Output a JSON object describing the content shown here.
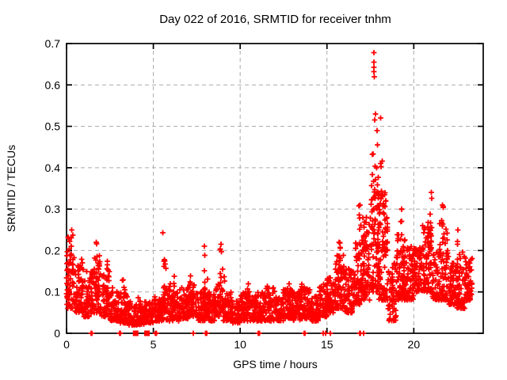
{
  "window": {
    "background": "#ffffff",
    "foreground": "#000000"
  },
  "chart_data": {
    "type": "scatter",
    "title": "Day 022 of 2016, SRMTID for receiver tnhm",
    "xlabel": "GPS time / hours",
    "ylabel": "SRMTID / TECUs",
    "xlim": [
      0,
      24
    ],
    "ylim": [
      0,
      0.7
    ],
    "xticks": [
      0,
      5,
      10,
      15,
      20
    ],
    "yticks": [
      0,
      0.1,
      0.2,
      0.3,
      0.4,
      0.5,
      0.6,
      0.7
    ],
    "grid": true,
    "grid_style": "dashed",
    "grid_color": "#aaaaaa",
    "legend": "none",
    "marker": {
      "glyph": "plus",
      "color": "#ff0000",
      "size": 7
    },
    "series_name": "SRMTID",
    "seed": 20160122,
    "notable_points": [
      {
        "x": 17.7,
        "y": 0.678,
        "note": "daily maximum"
      },
      {
        "x": 17.7,
        "y": 0.655
      },
      {
        "x": 17.7,
        "y": 0.643
      },
      {
        "x": 17.71,
        "y": 0.632
      },
      {
        "x": 17.72,
        "y": 0.62
      },
      {
        "x": 17.8,
        "y": 0.53
      },
      {
        "x": 17.75,
        "y": 0.515
      },
      {
        "x": 18.1,
        "y": 0.52
      },
      {
        "x": 17.88,
        "y": 0.49
      },
      {
        "x": 17.9,
        "y": 0.455
      },
      {
        "x": 21.0,
        "y": 0.34
      },
      {
        "x": 16.9,
        "y": 0.31
      },
      {
        "x": 21.65,
        "y": 0.31
      },
      {
        "x": 19.3,
        "y": 0.3
      },
      {
        "x": 0.3,
        "y": 0.25
      },
      {
        "x": 22.55,
        "y": 0.25
      },
      {
        "x": 5.54,
        "y": 0.243
      },
      {
        "x": 1.7,
        "y": 0.22
      },
      {
        "x": 15.7,
        "y": 0.22
      },
      {
        "x": 8.9,
        "y": 0.215
      },
      {
        "x": 7.95,
        "y": 0.21
      }
    ],
    "density_bins": [
      [
        0.0,
        0.5,
        0.06,
        0.22,
        55
      ],
      [
        0.5,
        1.0,
        0.05,
        0.18,
        60
      ],
      [
        1.0,
        1.5,
        0.04,
        0.15,
        60
      ],
      [
        1.5,
        2.0,
        0.05,
        0.19,
        60
      ],
      [
        2.0,
        2.5,
        0.04,
        0.16,
        55
      ],
      [
        2.5,
        3.0,
        0.03,
        0.11,
        55
      ],
      [
        3.0,
        3.5,
        0.025,
        0.1,
        55
      ],
      [
        3.5,
        4.0,
        0.02,
        0.08,
        55
      ],
      [
        4.0,
        4.5,
        0.02,
        0.07,
        55
      ],
      [
        4.5,
        5.0,
        0.025,
        0.08,
        55
      ],
      [
        5.0,
        5.5,
        0.03,
        0.09,
        55
      ],
      [
        5.5,
        6.0,
        0.03,
        0.12,
        55
      ],
      [
        6.0,
        6.5,
        0.03,
        0.1,
        55
      ],
      [
        6.5,
        7.0,
        0.035,
        0.11,
        55
      ],
      [
        7.0,
        7.5,
        0.04,
        0.12,
        60
      ],
      [
        7.5,
        8.0,
        0.03,
        0.11,
        55
      ],
      [
        8.0,
        8.5,
        0.03,
        0.1,
        55
      ],
      [
        8.5,
        9.0,
        0.04,
        0.12,
        55
      ],
      [
        9.0,
        9.5,
        0.03,
        0.1,
        50
      ],
      [
        9.5,
        10.0,
        0.025,
        0.08,
        55
      ],
      [
        10.0,
        10.5,
        0.03,
        0.1,
        60
      ],
      [
        10.5,
        11.0,
        0.03,
        0.09,
        55
      ],
      [
        11.0,
        11.5,
        0.03,
        0.1,
        60
      ],
      [
        11.5,
        12.0,
        0.03,
        0.11,
        55
      ],
      [
        12.0,
        12.5,
        0.03,
        0.09,
        55
      ],
      [
        12.5,
        13.0,
        0.035,
        0.11,
        60
      ],
      [
        13.0,
        13.5,
        0.03,
        0.1,
        55
      ],
      [
        13.5,
        14.0,
        0.035,
        0.11,
        60
      ],
      [
        14.0,
        14.5,
        0.03,
        0.09,
        55
      ],
      [
        14.5,
        15.0,
        0.04,
        0.12,
        55
      ],
      [
        15.0,
        15.5,
        0.05,
        0.14,
        60
      ],
      [
        15.5,
        16.0,
        0.06,
        0.19,
        65
      ],
      [
        16.0,
        16.5,
        0.05,
        0.16,
        60
      ],
      [
        16.5,
        17.0,
        0.07,
        0.23,
        65
      ],
      [
        17.0,
        17.5,
        0.08,
        0.28,
        70
      ],
      [
        17.5,
        18.0,
        0.1,
        0.36,
        75
      ],
      [
        18.0,
        18.5,
        0.08,
        0.33,
        70
      ],
      [
        18.5,
        19.0,
        0.03,
        0.17,
        60
      ],
      [
        19.0,
        19.5,
        0.08,
        0.24,
        65
      ],
      [
        19.5,
        20.0,
        0.08,
        0.21,
        65
      ],
      [
        20.0,
        20.5,
        0.1,
        0.21,
        65
      ],
      [
        20.5,
        21.0,
        0.1,
        0.26,
        65
      ],
      [
        21.0,
        21.5,
        0.08,
        0.21,
        60
      ],
      [
        21.5,
        22.0,
        0.08,
        0.27,
        60
      ],
      [
        22.0,
        22.5,
        0.07,
        0.17,
        65
      ],
      [
        22.5,
        23.0,
        0.06,
        0.2,
        60
      ],
      [
        23.0,
        23.35,
        0.08,
        0.19,
        45
      ]
    ],
    "spike_columns": [
      [
        0.1,
        0.08,
        0.25,
        10,
        0.08
      ],
      [
        0.35,
        0.1,
        0.24,
        8,
        0.08
      ],
      [
        1.7,
        0.08,
        0.22,
        9,
        0.08
      ],
      [
        2.3,
        0.06,
        0.18,
        7,
        0.08
      ],
      [
        3.3,
        0.04,
        0.13,
        6,
        0.08
      ],
      [
        4.2,
        0.03,
        0.09,
        5,
        0.08
      ],
      [
        5.66,
        0.05,
        0.185,
        9,
        0.06
      ],
      [
        6.2,
        0.05,
        0.14,
        7,
        0.06
      ],
      [
        7.2,
        0.06,
        0.145,
        8,
        0.08
      ],
      [
        7.95,
        0.05,
        0.21,
        9,
        0.06
      ],
      [
        8.15,
        0.05,
        0.145,
        6,
        0.06
      ],
      [
        8.9,
        0.05,
        0.215,
        10,
        0.06
      ],
      [
        9.05,
        0.05,
        0.16,
        6,
        0.06
      ],
      [
        10.45,
        0.04,
        0.12,
        6,
        0.08
      ],
      [
        11.5,
        0.04,
        0.115,
        6,
        0.08
      ],
      [
        12.8,
        0.04,
        0.12,
        6,
        0.08
      ],
      [
        13.5,
        0.04,
        0.12,
        6,
        0.08
      ],
      [
        14.9,
        0.05,
        0.13,
        6,
        0.08
      ],
      [
        15.7,
        0.08,
        0.22,
        10,
        0.07
      ],
      [
        16.9,
        0.1,
        0.31,
        12,
        0.07
      ],
      [
        17.15,
        0.1,
        0.27,
        9,
        0.07
      ],
      [
        17.7,
        0.25,
        0.45,
        12,
        0.1
      ],
      [
        17.92,
        0.3,
        0.43,
        10,
        0.07
      ],
      [
        18.15,
        0.28,
        0.42,
        9,
        0.07
      ],
      [
        18.3,
        0.24,
        0.35,
        8,
        0.07
      ],
      [
        18.45,
        0.15,
        0.3,
        6,
        0.07
      ],
      [
        19.3,
        0.12,
        0.3,
        10,
        0.07
      ],
      [
        19.45,
        0.1,
        0.25,
        8,
        0.07
      ],
      [
        20.8,
        0.12,
        0.27,
        8,
        0.08
      ],
      [
        21.0,
        0.2,
        0.33,
        9,
        0.06
      ],
      [
        21.65,
        0.12,
        0.31,
        9,
        0.06
      ],
      [
        21.9,
        0.08,
        0.24,
        6,
        0.07
      ],
      [
        22.55,
        0.1,
        0.24,
        7,
        0.06
      ],
      [
        23.3,
        0.1,
        0.19,
        6,
        0.06
      ]
    ],
    "zero_marks": [
      1.42,
      1.47,
      3.05,
      3.1,
      5.12,
      5.17,
      7.3,
      8.0,
      8.07,
      11.05,
      11.1,
      13.68,
      13.73,
      14.78,
      14.92,
      15.2,
      16.88,
      16.93,
      17.1
    ],
    "zero_clusters": [
      {
        "x": 3.98,
        "shape": "square"
      },
      {
        "x": 4.63,
        "shape": "square"
      }
    ]
  }
}
